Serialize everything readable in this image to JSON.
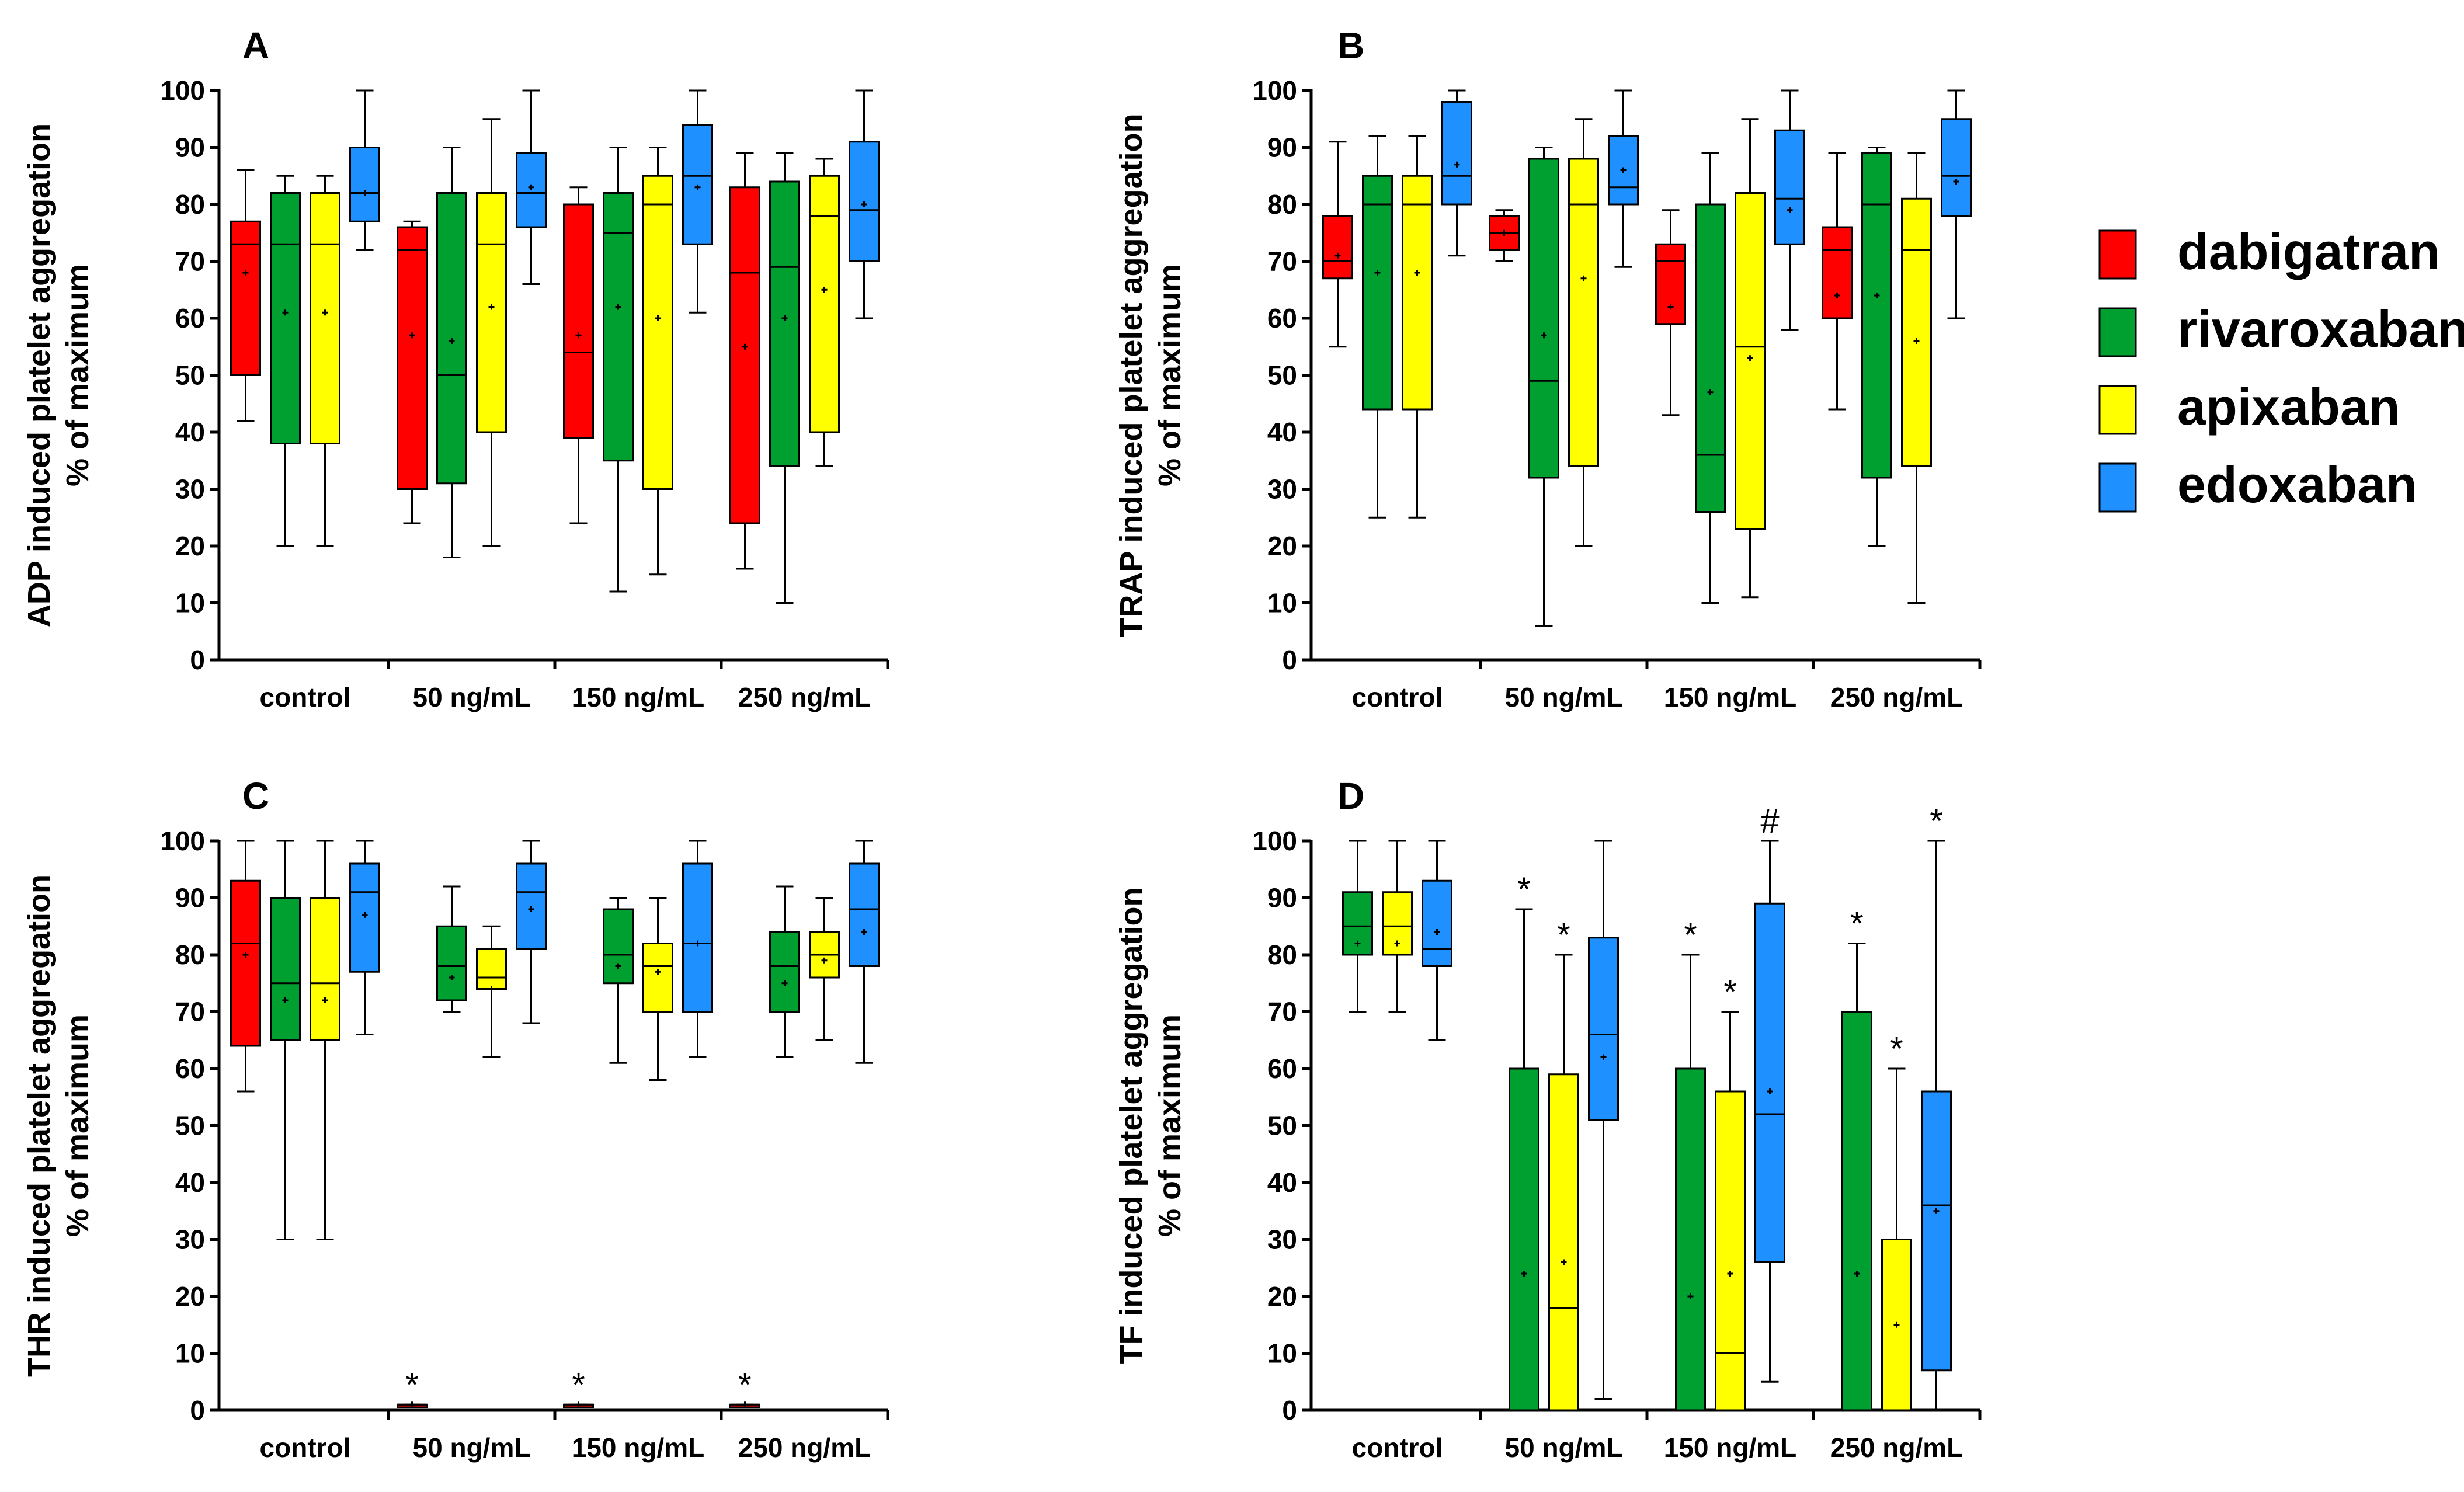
{
  "colors": {
    "dabigatran": "#ff0000",
    "rivaroxaban": "#00a030",
    "apixaban": "#ffff00",
    "edoxaban": "#1e90ff"
  },
  "legend": [
    {
      "key": "dabigatran",
      "label": "dabigatran"
    },
    {
      "key": "rivaroxaban",
      "label": "rivaroxaban"
    },
    {
      "key": "apixaban",
      "label": "apixaban"
    },
    {
      "key": "edoxaban",
      "label": "edoxaban"
    }
  ],
  "chart_data": [
    {
      "type": "boxplot",
      "panel": "A",
      "ylabel_line1": "ADP induced platelet aggregation",
      "ylabel_line2": "% of maximum",
      "ylim": [
        0,
        100
      ],
      "yticks": [
        0,
        10,
        20,
        30,
        40,
        50,
        60,
        70,
        80,
        90,
        100
      ],
      "categories": [
        "control",
        "50 ng/mL",
        "150 ng/mL",
        "250 ng/mL"
      ],
      "series": [
        "dabigatran",
        "rivaroxaban",
        "apixaban",
        "edoxaban"
      ],
      "boxes": [
        [
          {
            "min": 42,
            "q1": 50,
            "median": 73,
            "q3": 77,
            "max": 86,
            "mean": 68
          },
          {
            "min": 20,
            "q1": 38,
            "median": 73,
            "q3": 82,
            "max": 85,
            "mean": 61
          },
          {
            "min": 20,
            "q1": 38,
            "median": 73,
            "q3": 82,
            "max": 85,
            "mean": 61
          },
          {
            "min": 72,
            "q1": 77,
            "median": 82,
            "q3": 90,
            "max": 100,
            "mean": 82
          }
        ],
        [
          {
            "min": 24,
            "q1": 30,
            "median": 72,
            "q3": 76,
            "max": 77,
            "mean": 57
          },
          {
            "min": 18,
            "q1": 31,
            "median": 50,
            "q3": 82,
            "max": 90,
            "mean": 56
          },
          {
            "min": 20,
            "q1": 40,
            "median": 73,
            "q3": 82,
            "max": 95,
            "mean": 62
          },
          {
            "min": 66,
            "q1": 76,
            "median": 82,
            "q3": 89,
            "max": 100,
            "mean": 83
          }
        ],
        [
          {
            "min": 24,
            "q1": 39,
            "median": 54,
            "q3": 80,
            "max": 83,
            "mean": 57
          },
          {
            "min": 12,
            "q1": 35,
            "median": 75,
            "q3": 82,
            "max": 90,
            "mean": 62
          },
          {
            "min": 15,
            "q1": 30,
            "median": 80,
            "q3": 85,
            "max": 90,
            "mean": 60
          },
          {
            "min": 61,
            "q1": 73,
            "median": 85,
            "q3": 94,
            "max": 100,
            "mean": 83
          }
        ],
        [
          {
            "min": 16,
            "q1": 24,
            "median": 68,
            "q3": 83,
            "max": 89,
            "mean": 55
          },
          {
            "min": 10,
            "q1": 34,
            "median": 69,
            "q3": 84,
            "max": 89,
            "mean": 60
          },
          {
            "min": 34,
            "q1": 40,
            "median": 78,
            "q3": 85,
            "max": 88,
            "mean": 65
          },
          {
            "min": 60,
            "q1": 70,
            "median": 79,
            "q3": 91,
            "max": 100,
            "mean": 80
          }
        ]
      ],
      "annotations": []
    },
    {
      "type": "boxplot",
      "panel": "B",
      "ylabel_line1": "TRAP induced platelet aggregation",
      "ylabel_line2": "% of maximum",
      "ylim": [
        0,
        100
      ],
      "yticks": [
        0,
        10,
        20,
        30,
        40,
        50,
        60,
        70,
        80,
        90,
        100
      ],
      "categories": [
        "control",
        "50 ng/mL",
        "150 ng/mL",
        "250 ng/mL"
      ],
      "series": [
        "dabigatran",
        "rivaroxaban",
        "apixaban",
        "edoxaban"
      ],
      "boxes": [
        [
          {
            "min": 55,
            "q1": 67,
            "median": 70,
            "q3": 78,
            "max": 91,
            "mean": 71
          },
          {
            "min": 25,
            "q1": 44,
            "median": 80,
            "q3": 85,
            "max": 92,
            "mean": 68
          },
          {
            "min": 25,
            "q1": 44,
            "median": 80,
            "q3": 85,
            "max": 92,
            "mean": 68
          },
          {
            "min": 71,
            "q1": 80,
            "median": 85,
            "q3": 98,
            "max": 100,
            "mean": 87
          }
        ],
        [
          {
            "min": 70,
            "q1": 72,
            "median": 75,
            "q3": 78,
            "max": 79,
            "mean": 75
          },
          {
            "min": 6,
            "q1": 32,
            "median": 49,
            "q3": 88,
            "max": 90,
            "mean": 57
          },
          {
            "min": 20,
            "q1": 34,
            "median": 80,
            "q3": 88,
            "max": 95,
            "mean": 67
          },
          {
            "min": 69,
            "q1": 80,
            "median": 83,
            "q3": 92,
            "max": 100,
            "mean": 86
          }
        ],
        [
          {
            "min": 43,
            "q1": 59,
            "median": 70,
            "q3": 73,
            "max": 79,
            "mean": 62
          },
          {
            "min": 10,
            "q1": 26,
            "median": 36,
            "q3": 80,
            "max": 89,
            "mean": 47
          },
          {
            "min": 11,
            "q1": 23,
            "median": 55,
            "q3": 82,
            "max": 95,
            "mean": 53
          },
          {
            "min": 58,
            "q1": 73,
            "median": 81,
            "q3": 93,
            "max": 100,
            "mean": 79
          }
        ],
        [
          {
            "min": 44,
            "q1": 60,
            "median": 72,
            "q3": 76,
            "max": 89,
            "mean": 64
          },
          {
            "min": 20,
            "q1": 32,
            "median": 80,
            "q3": 89,
            "max": 90,
            "mean": 64
          },
          {
            "min": 10,
            "q1": 34,
            "median": 72,
            "q3": 81,
            "max": 89,
            "mean": 56
          },
          {
            "min": 60,
            "q1": 78,
            "median": 85,
            "q3": 95,
            "max": 100,
            "mean": 84
          }
        ]
      ],
      "annotations": []
    },
    {
      "type": "boxplot",
      "panel": "C",
      "ylabel_line1": "THR induced platelet aggregation",
      "ylabel_line2": "% of maximum",
      "ylim": [
        0,
        100
      ],
      "yticks": [
        0,
        10,
        20,
        30,
        40,
        50,
        60,
        70,
        80,
        90,
        100
      ],
      "categories": [
        "control",
        "50 ng/mL",
        "150 ng/mL",
        "250 ng/mL"
      ],
      "series": [
        "dabigatran",
        "rivaroxaban",
        "apixaban",
        "edoxaban"
      ],
      "boxes": [
        [
          {
            "min": 56,
            "q1": 64,
            "median": 82,
            "q3": 93,
            "max": 100,
            "mean": 80
          },
          {
            "min": 30,
            "q1": 65,
            "median": 75,
            "q3": 90,
            "max": 100,
            "mean": 72
          },
          {
            "min": 30,
            "q1": 65,
            "median": 75,
            "q3": 90,
            "max": 100,
            "mean": 72
          },
          {
            "min": 66,
            "q1": 77,
            "median": 91,
            "q3": 96,
            "max": 100,
            "mean": 87
          }
        ],
        [
          {
            "min": 0.5,
            "q1": 0.5,
            "median": 1,
            "q3": 1,
            "max": 1,
            "mean": 1
          },
          {
            "min": 70,
            "q1": 72,
            "median": 78,
            "q3": 85,
            "max": 92,
            "mean": 76
          },
          {
            "min": 62,
            "q1": 74,
            "median": 76,
            "q3": 81,
            "max": 85,
            "mean": 74
          },
          {
            "min": 68,
            "q1": 81,
            "median": 91,
            "q3": 96,
            "max": 100,
            "mean": 88
          }
        ],
        [
          {
            "min": 0.5,
            "q1": 0.5,
            "median": 1,
            "q3": 1,
            "max": 1,
            "mean": 1
          },
          {
            "min": 61,
            "q1": 75,
            "median": 80,
            "q3": 88,
            "max": 90,
            "mean": 78
          },
          {
            "min": 58,
            "q1": 70,
            "median": 78,
            "q3": 82,
            "max": 90,
            "mean": 77
          },
          {
            "min": 62,
            "q1": 70,
            "median": 82,
            "q3": 96,
            "max": 100,
            "mean": 82
          }
        ],
        [
          {
            "min": 0.5,
            "q1": 0.5,
            "median": 1,
            "q3": 1,
            "max": 1,
            "mean": 1
          },
          {
            "min": 62,
            "q1": 70,
            "median": 78,
            "q3": 84,
            "max": 92,
            "mean": 75
          },
          {
            "min": 65,
            "q1": 76,
            "median": 80,
            "q3": 84,
            "max": 90,
            "mean": 79
          },
          {
            "min": 61,
            "q1": 78,
            "median": 88,
            "q3": 96,
            "max": 100,
            "mean": 84
          }
        ]
      ],
      "annotations": [
        {
          "text": "*",
          "category": 1,
          "series": 0,
          "y": 1
        },
        {
          "text": "*",
          "category": 2,
          "series": 0,
          "y": 1
        },
        {
          "text": "*",
          "category": 3,
          "series": 0,
          "y": 1
        }
      ]
    },
    {
      "type": "boxplot",
      "panel": "D",
      "ylabel_line1": "TF induced platelet aggregation",
      "ylabel_line2": "% of maximum",
      "ylim": [
        0,
        100
      ],
      "yticks": [
        0,
        10,
        20,
        30,
        40,
        50,
        60,
        70,
        80,
        90,
        100
      ],
      "categories": [
        "control",
        "50 ng/mL",
        "150 ng/mL",
        "250 ng/mL"
      ],
      "series": [
        "rivaroxaban",
        "apixaban",
        "edoxaban"
      ],
      "boxes": [
        [
          {
            "min": 70,
            "q1": 80,
            "median": 85,
            "q3": 91,
            "max": 100,
            "mean": 82
          },
          {
            "min": 70,
            "q1": 80,
            "median": 85,
            "q3": 91,
            "max": 100,
            "mean": 82
          },
          {
            "min": 65,
            "q1": 78,
            "median": 81,
            "q3": 93,
            "max": 100,
            "mean": 84
          }
        ],
        [
          {
            "min": 0,
            "q1": 0,
            "median": 0,
            "q3": 60,
            "max": 88,
            "mean": 24
          },
          {
            "min": 0,
            "q1": 0,
            "median": 18,
            "q3": 59,
            "max": 80,
            "mean": 26
          },
          {
            "min": 2,
            "q1": 51,
            "median": 66,
            "q3": 83,
            "max": 100,
            "mean": 62
          }
        ],
        [
          {
            "min": 0,
            "q1": 0,
            "median": 0,
            "q3": 60,
            "max": 80,
            "mean": 20
          },
          {
            "min": 0,
            "q1": 0,
            "median": 10,
            "q3": 56,
            "max": 70,
            "mean": 24
          },
          {
            "min": 5,
            "q1": 26,
            "median": 52,
            "q3": 89,
            "max": 100,
            "mean": 56
          }
        ],
        [
          {
            "min": 0,
            "q1": 0,
            "median": 0,
            "q3": 70,
            "max": 82,
            "mean": 24
          },
          {
            "min": 0,
            "q1": 0,
            "median": 0,
            "q3": 30,
            "max": 60,
            "mean": 15
          },
          {
            "min": 0,
            "q1": 7,
            "median": 36,
            "q3": 56,
            "max": 100,
            "mean": 35
          }
        ]
      ],
      "annotations": [
        {
          "text": "*",
          "category": 1,
          "series": 0,
          "y": 88
        },
        {
          "text": "*",
          "category": 1,
          "series": 1,
          "y": 80
        },
        {
          "text": "*",
          "category": 2,
          "series": 0,
          "y": 80
        },
        {
          "text": "*",
          "category": 2,
          "series": 1,
          "y": 70
        },
        {
          "text": "#",
          "category": 2,
          "series": 2,
          "y": 100
        },
        {
          "text": "*",
          "category": 3,
          "series": 0,
          "y": 82
        },
        {
          "text": "*",
          "category": 3,
          "series": 1,
          "y": 60
        },
        {
          "text": "*",
          "category": 3,
          "series": 2,
          "y": 100
        }
      ]
    }
  ]
}
